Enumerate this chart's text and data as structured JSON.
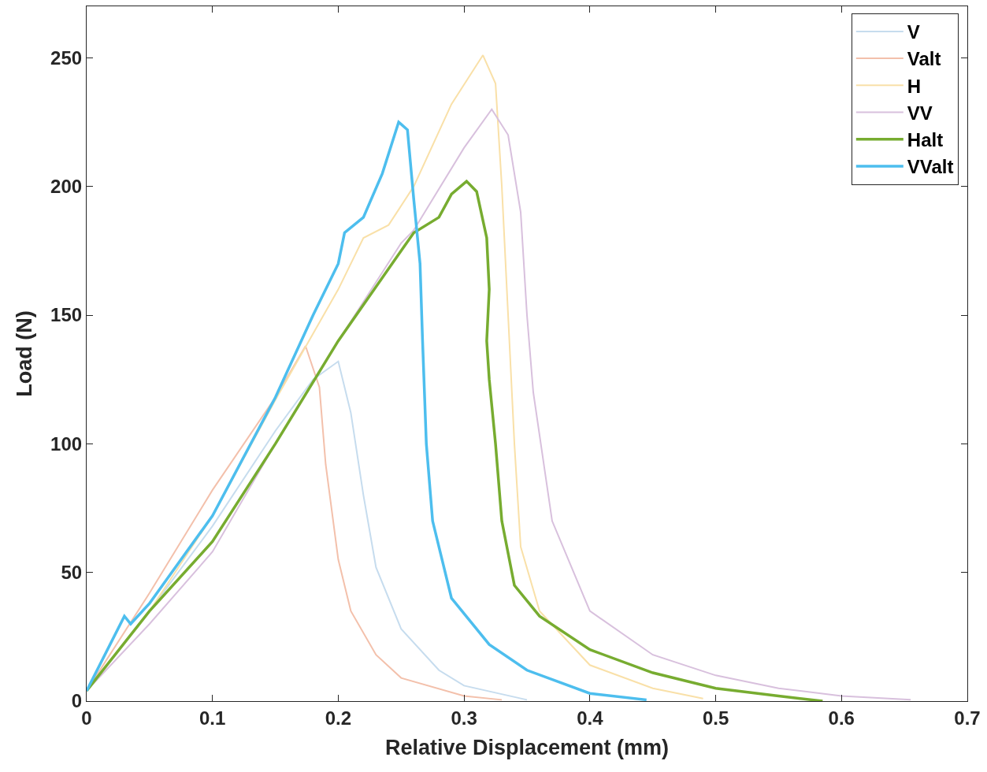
{
  "chart_data": {
    "type": "line",
    "xlabel": "Relative Displacement (mm)",
    "ylabel": "Load (N)",
    "xlim": [
      0,
      0.7
    ],
    "xticks": [
      0,
      0.1,
      0.2,
      0.3,
      0.4,
      0.5,
      0.6,
      0.7
    ],
    "ylim": [
      0,
      270
    ],
    "yticks": [
      0,
      50,
      100,
      150,
      200,
      250
    ],
    "grid": false,
    "legend": "top right",
    "marker": "none",
    "line_style": "solid",
    "series": [
      {
        "name": "V",
        "color": "#c6dcee",
        "x": [
          0,
          0.05,
          0.1,
          0.15,
          0.18,
          0.2,
          0.21,
          0.22,
          0.23,
          0.25,
          0.28,
          0.3,
          0.35
        ],
        "values": [
          4,
          35,
          68,
          105,
          125,
          132,
          112,
          80,
          52,
          28,
          12,
          6,
          0.5
        ]
      },
      {
        "name": "Valt",
        "color": "#f3c0ab",
        "x": [
          0,
          0.05,
          0.1,
          0.15,
          0.174,
          0.185,
          0.19,
          0.2,
          0.21,
          0.23,
          0.25,
          0.3,
          0.33
        ],
        "values": [
          4,
          42,
          82,
          118,
          138,
          122,
          92,
          55,
          35,
          18,
          9,
          2,
          0.5
        ]
      },
      {
        "name": "H",
        "color": "#f9e0a8",
        "x": [
          0,
          0.05,
          0.1,
          0.15,
          0.2,
          0.22,
          0.24,
          0.26,
          0.29,
          0.315,
          0.325,
          0.33,
          0.335,
          0.34,
          0.345,
          0.36,
          0.4,
          0.45,
          0.49
        ],
        "values": [
          4,
          35,
          72,
          117,
          160,
          180,
          185,
          200,
          232,
          251,
          240,
          200,
          150,
          100,
          60,
          35,
          14,
          5,
          1
        ]
      },
      {
        "name": "VV",
        "color": "#d8c0dd",
        "x": [
          0,
          0.05,
          0.1,
          0.15,
          0.2,
          0.25,
          0.26,
          0.3,
          0.322,
          0.335,
          0.345,
          0.35,
          0.355,
          0.37,
          0.4,
          0.45,
          0.5,
          0.55,
          0.6,
          0.655
        ],
        "values": [
          4,
          30,
          58,
          100,
          140,
          178,
          183,
          215,
          230,
          220,
          190,
          150,
          120,
          70,
          35,
          18,
          10,
          5,
          2,
          0.5
        ]
      },
      {
        "name": "Halt",
        "color": "#77ac30",
        "x": [
          0,
          0.05,
          0.1,
          0.15,
          0.2,
          0.25,
          0.26,
          0.28,
          0.29,
          0.302,
          0.31,
          0.318,
          0.32,
          0.318,
          0.32,
          0.325,
          0.33,
          0.34,
          0.36,
          0.4,
          0.45,
          0.5,
          0.55,
          0.585
        ],
        "values": [
          4,
          35,
          62,
          100,
          140,
          175,
          182,
          188,
          197,
          202,
          198,
          180,
          160,
          140,
          125,
          100,
          70,
          45,
          33,
          20,
          11,
          5,
          2,
          0
        ]
      },
      {
        "name": "VValt",
        "color": "#4dbeee",
        "x": [
          0,
          0.03,
          0.035,
          0.05,
          0.1,
          0.15,
          0.18,
          0.2,
          0.205,
          0.22,
          0.235,
          0.248,
          0.255,
          0.26,
          0.265,
          0.267,
          0.27,
          0.275,
          0.29,
          0.32,
          0.35,
          0.4,
          0.445
        ],
        "values": [
          4,
          33,
          30,
          38,
          72,
          118,
          150,
          170,
          182,
          188,
          205,
          225,
          222,
          195,
          170,
          140,
          100,
          70,
          40,
          22,
          12,
          3,
          0.5
        ]
      }
    ]
  }
}
